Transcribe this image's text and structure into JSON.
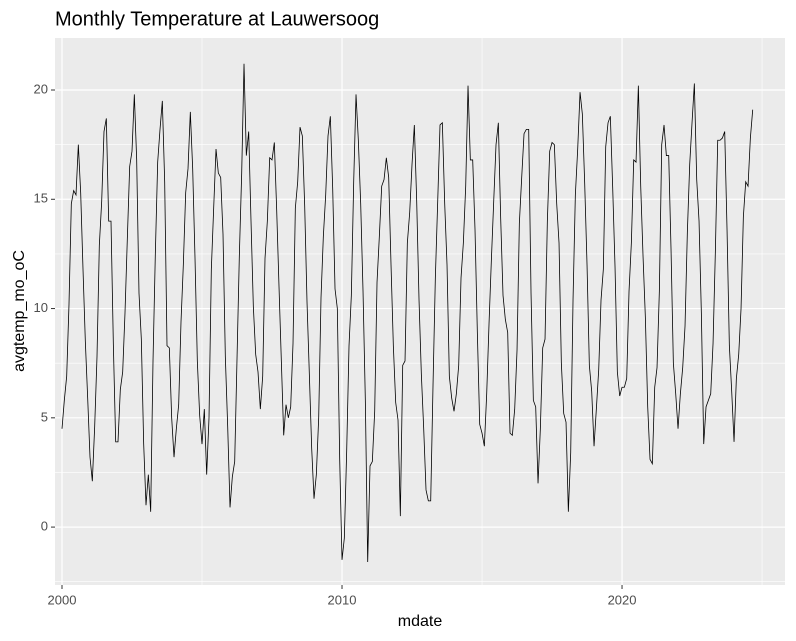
{
  "chart_data": {
    "type": "line",
    "title": "Monthly Temperature at Lauwersoog",
    "x_label": "mdate",
    "y_label": "avgtemp_mo_oC",
    "color": "#000000",
    "grid": true,
    "xlim": [
      1999.75,
      2025.82
    ],
    "xticks": [
      2000,
      2010,
      2020
    ],
    "ylim": [
      -2.65,
      22.38
    ],
    "yticks": [
      0,
      5,
      10,
      15,
      20
    ],
    "x": [
      2000,
      2000.083,
      2000.167,
      2000.25,
      2000.333,
      2000.417,
      2000.5,
      2000.583,
      2000.667,
      2000.75,
      2000.833,
      2000.917,
      2001,
      2001.083,
      2001.167,
      2001.25,
      2001.333,
      2001.417,
      2001.5,
      2001.583,
      2001.667,
      2001.75,
      2001.833,
      2001.917,
      2002,
      2002.083,
      2002.167,
      2002.25,
      2002.333,
      2002.417,
      2002.5,
      2002.583,
      2002.667,
      2002.75,
      2002.833,
      2002.917,
      2003,
      2003.083,
      2003.167,
      2003.25,
      2003.333,
      2003.417,
      2003.5,
      2003.583,
      2003.667,
      2003.75,
      2003.833,
      2003.917,
      2004,
      2004.083,
      2004.167,
      2004.25,
      2004.333,
      2004.417,
      2004.5,
      2004.583,
      2004.667,
      2004.75,
      2004.833,
      2004.917,
      2005,
      2005.083,
      2005.167,
      2005.25,
      2005.333,
      2005.417,
      2005.5,
      2005.583,
      2005.667,
      2005.75,
      2005.833,
      2005.917,
      2006,
      2006.083,
      2006.167,
      2006.25,
      2006.333,
      2006.417,
      2006.5,
      2006.583,
      2006.667,
      2006.75,
      2006.833,
      2006.917,
      2007,
      2007.083,
      2007.167,
      2007.25,
      2007.333,
      2007.417,
      2007.5,
      2007.583,
      2007.667,
      2007.75,
      2007.833,
      2007.917,
      2008,
      2008.083,
      2008.167,
      2008.25,
      2008.333,
      2008.417,
      2008.5,
      2008.583,
      2008.667,
      2008.75,
      2008.833,
      2008.917,
      2009,
      2009.083,
      2009.167,
      2009.25,
      2009.333,
      2009.417,
      2009.5,
      2009.583,
      2009.667,
      2009.75,
      2009.833,
      2009.917,
      2010,
      2010.083,
      2010.167,
      2010.25,
      2010.333,
      2010.417,
      2010.5,
      2010.583,
      2010.667,
      2010.75,
      2010.833,
      2010.917,
      2011,
      2011.083,
      2011.167,
      2011.25,
      2011.333,
      2011.417,
      2011.5,
      2011.583,
      2011.667,
      2011.75,
      2011.833,
      2011.917,
      2012,
      2012.083,
      2012.167,
      2012.25,
      2012.333,
      2012.417,
      2012.5,
      2012.583,
      2012.667,
      2012.75,
      2012.833,
      2012.917,
      2013,
      2013.083,
      2013.167,
      2013.25,
      2013.333,
      2013.417,
      2013.5,
      2013.583,
      2013.667,
      2013.75,
      2013.833,
      2013.917,
      2014,
      2014.083,
      2014.167,
      2014.25,
      2014.333,
      2014.417,
      2014.5,
      2014.583,
      2014.667,
      2014.75,
      2014.833,
      2014.917,
      2015,
      2015.083,
      2015.167,
      2015.25,
      2015.333,
      2015.417,
      2015.5,
      2015.583,
      2015.667,
      2015.75,
      2015.833,
      2015.917,
      2016,
      2016.083,
      2016.167,
      2016.25,
      2016.333,
      2016.417,
      2016.5,
      2016.583,
      2016.667,
      2016.75,
      2016.833,
      2016.917,
      2017,
      2017.083,
      2017.167,
      2017.25,
      2017.333,
      2017.417,
      2017.5,
      2017.583,
      2017.667,
      2017.75,
      2017.833,
      2017.917,
      2018,
      2018.083,
      2018.167,
      2018.25,
      2018.333,
      2018.417,
      2018.5,
      2018.583,
      2018.667,
      2018.75,
      2018.833,
      2018.917,
      2019,
      2019.083,
      2019.167,
      2019.25,
      2019.333,
      2019.417,
      2019.5,
      2019.583,
      2019.667,
      2019.75,
      2019.833,
      2019.917,
      2020,
      2020.083,
      2020.167,
      2020.25,
      2020.333,
      2020.417,
      2020.5,
      2020.583,
      2020.667,
      2020.75,
      2020.833,
      2020.917,
      2021,
      2021.083,
      2021.167,
      2021.25,
      2021.333,
      2021.417,
      2021.5,
      2021.583,
      2021.667,
      2021.75,
      2021.833,
      2021.917,
      2022,
      2022.083,
      2022.167,
      2022.25,
      2022.333,
      2022.417,
      2022.5,
      2022.583,
      2022.667,
      2022.75,
      2022.833,
      2022.917,
      2023,
      2023.083,
      2023.167,
      2023.25,
      2023.333,
      2023.417,
      2023.5,
      2023.583,
      2023.667,
      2023.75,
      2023.833,
      2023.917,
      2024,
      2024.083,
      2024.167,
      2024.25,
      2024.333,
      2024.417,
      2024.5,
      2024.583,
      2024.667
    ],
    "values": [
      4.5,
      5.8,
      6.9,
      10.2,
      14.8,
      15.4,
      15.2,
      17.5,
      15.3,
      11.8,
      8.5,
      5.9,
      3.2,
      2.1,
      4.6,
      7.8,
      12.9,
      14.9,
      18.1,
      18.7,
      14.0,
      14.0,
      8.4,
      3.9,
      3.9,
      6.3,
      7.1,
      9.8,
      13.2,
      16.5,
      17.2,
      19.8,
      16.8,
      10.7,
      8.6,
      3.8,
      1.0,
      2.4,
      0.7,
      7.6,
      12.5,
      16.7,
      18.2,
      19.5,
      15.8,
      8.3,
      8.2,
      5.0,
      3.2,
      4.5,
      5.6,
      9.4,
      12.0,
      15.3,
      16.4,
      19.0,
      16.4,
      12.3,
      7.6,
      5.1,
      3.8,
      5.4,
      2.4,
      5.0,
      11.8,
      14.6,
      17.3,
      16.2,
      16.0,
      13.4,
      7.8,
      4.6,
      0.9,
      2.3,
      3.0,
      7.7,
      12.4,
      16.2,
      21.2,
      17.0,
      18.1,
      14.0,
      10.1,
      7.9,
      7.1,
      5.4,
      6.9,
      12.3,
      14.0,
      16.9,
      16.8,
      17.6,
      14.5,
      11.0,
      7.6,
      4.2,
      5.6,
      5.0,
      5.5,
      8.4,
      14.6,
      15.8,
      18.3,
      17.9,
      14.7,
      10.3,
      7.0,
      3.6,
      1.3,
      2.4,
      5.0,
      10.5,
      13.3,
      15.2,
      17.9,
      18.8,
      15.5,
      10.9,
      10.0,
      3.1,
      -1.5,
      -0.5,
      3.5,
      8.3,
      10.6,
      15.8,
      19.8,
      17.7,
      14.8,
      10.8,
      5.8,
      -1.6,
      2.8,
      3.0,
      5.3,
      11.2,
      13.3,
      15.6,
      15.9,
      16.9,
      16.0,
      12.0,
      8.3,
      5.7,
      4.9,
      0.5,
      7.4,
      7.6,
      13.0,
      14.4,
      16.6,
      18.4,
      14.9,
      10.4,
      7.0,
      4.5,
      1.7,
      1.2,
      1.2,
      6.5,
      11.4,
      14.9,
      18.4,
      18.5,
      14.8,
      12.0,
      6.9,
      5.9,
      5.3,
      6.1,
      7.4,
      11.4,
      13.0,
      15.6,
      20.2,
      16.8,
      16.8,
      13.6,
      8.9,
      4.7,
      4.3,
      3.7,
      6.1,
      9.3,
      12.2,
      14.9,
      17.5,
      18.5,
      14.1,
      10.6,
      9.5,
      8.9,
      4.3,
      4.2,
      5.4,
      8.1,
      13.9,
      16.0,
      18.0,
      18.2,
      18.2,
      10.7,
      5.8,
      5.5,
      2.0,
      4.5,
      8.2,
      8.6,
      14.0,
      17.2,
      17.6,
      17.5,
      14.8,
      13.0,
      7.5,
      5.2,
      4.8,
      0.7,
      3.4,
      10.4,
      15.2,
      17.3,
      19.9,
      18.9,
      15.7,
      12.0,
      7.4,
      6.2,
      3.7,
      5.4,
      7.2,
      10.4,
      11.8,
      17.4,
      18.5,
      18.8,
      15.5,
      11.9,
      7.1,
      6.0,
      6.4,
      6.4,
      6.8,
      10.8,
      13.0,
      16.8,
      16.7,
      20.2,
      15.6,
      12.4,
      9.6,
      5.5,
      3.1,
      2.9,
      6.4,
      7.3,
      10.8,
      17.5,
      18.4,
      17.0,
      17.0,
      12.7,
      7.5,
      6.1,
      4.5,
      6.1,
      7.3,
      9.2,
      13.5,
      16.6,
      18.5,
      20.3,
      15.9,
      14.0,
      9.8,
      3.8,
      5.5,
      5.8,
      6.1,
      8.4,
      12.6,
      17.7,
      17.7,
      17.8,
      18.1,
      13.6,
      8.3,
      6.2,
      3.9,
      6.8,
      7.9,
      10.0,
      14.2,
      15.8,
      15.6,
      17.8,
      19.1
    ]
  }
}
